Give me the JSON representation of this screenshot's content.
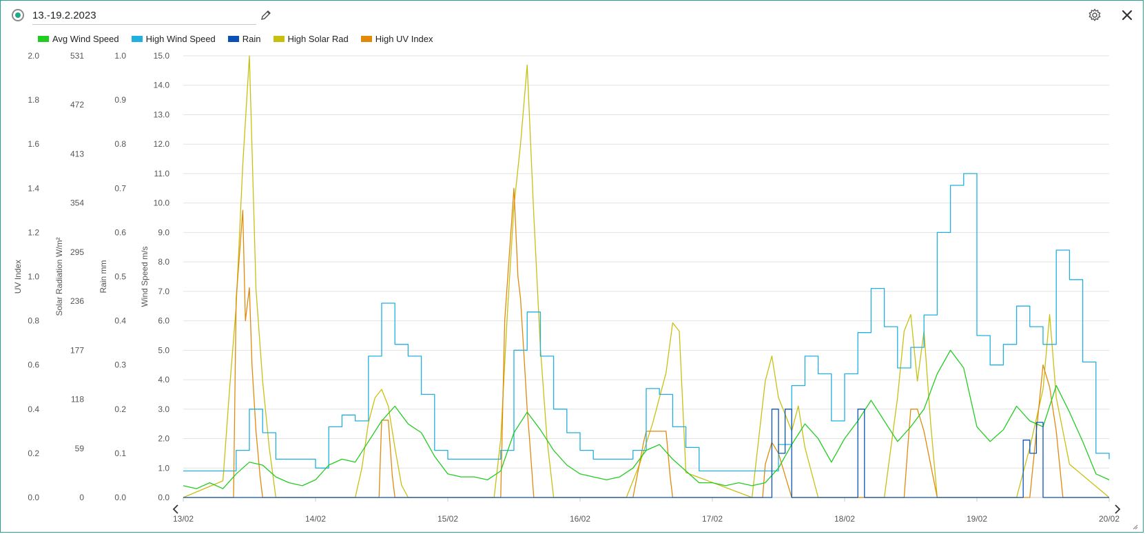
{
  "header": {
    "title": "13.-19.2.2023"
  },
  "colors": {
    "avg_wind": "#22cc22",
    "high_wind": "#1fb0e0",
    "rain": "#0a52b5",
    "solar": "#c8c010",
    "uv": "#e08a0a",
    "grid": "#e2e2e2"
  },
  "chart_data": {
    "type": "line",
    "legend": [
      "Avg Wind Speed",
      "High Wind Speed",
      "Rain",
      "High Solar Rad",
      "High UV Index"
    ],
    "legend_placement": "top-left",
    "x_ticks": [
      "13/02",
      "14/02",
      "15/02",
      "16/02",
      "17/02",
      "18/02",
      "19/02",
      "20/02"
    ],
    "xlim": [
      0,
      7
    ],
    "axes": [
      {
        "title": "UV Index",
        "ticks": [
          "2.0",
          "1.8",
          "1.6",
          "1.4",
          "1.2",
          "1.0",
          "0.8",
          "0.6",
          "0.4",
          "0.2",
          "0.0"
        ],
        "ylim": [
          0,
          2
        ]
      },
      {
        "title": "Solar Radiation W/m²",
        "ticks": [
          "531",
          "472",
          "413",
          "354",
          "295",
          "236",
          "177",
          "118",
          "59",
          "0"
        ],
        "ylim": [
          0,
          531
        ]
      },
      {
        "title": "Rain mm",
        "ticks": [
          "1.0",
          "0.9",
          "0.8",
          "0.7",
          "0.6",
          "0.5",
          "0.4",
          "0.3",
          "0.2",
          "0.1",
          "0.0"
        ],
        "ylim": [
          0,
          1
        ]
      },
      {
        "title": "Wind Speed m/s",
        "ticks": [
          "15.0",
          "14.0",
          "13.0",
          "12.0",
          "11.0",
          "10.0",
          "9.0",
          "8.0",
          "7.0",
          "6.0",
          "5.0",
          "4.0",
          "3.0",
          "2.0",
          "1.0",
          "0.0"
        ],
        "ylim": [
          0,
          15
        ]
      }
    ],
    "grid": true,
    "series": [
      {
        "name": "Avg Wind Speed",
        "axis": 3,
        "x": [
          0,
          0.1,
          0.2,
          0.3,
          0.4,
          0.5,
          0.6,
          0.7,
          0.8,
          0.9,
          1.0,
          1.1,
          1.2,
          1.3,
          1.4,
          1.5,
          1.6,
          1.7,
          1.8,
          1.9,
          2.0,
          2.1,
          2.2,
          2.3,
          2.4,
          2.5,
          2.6,
          2.7,
          2.8,
          2.9,
          3.0,
          3.1,
          3.2,
          3.3,
          3.4,
          3.5,
          3.6,
          3.7,
          3.8,
          3.9,
          4.0,
          4.1,
          4.2,
          4.3,
          4.4,
          4.5,
          4.6,
          4.7,
          4.8,
          4.9,
          5.0,
          5.1,
          5.2,
          5.3,
          5.4,
          5.5,
          5.6,
          5.7,
          5.8,
          5.9,
          6.0,
          6.1,
          6.2,
          6.3,
          6.4,
          6.5,
          6.6,
          6.7,
          6.8,
          6.9,
          7.0
        ],
        "y": [
          0.4,
          0.3,
          0.5,
          0.3,
          0.8,
          1.2,
          1.1,
          0.7,
          0.5,
          0.4,
          0.6,
          1.1,
          1.3,
          1.2,
          1.9,
          2.6,
          3.1,
          2.5,
          2.2,
          1.4,
          0.8,
          0.7,
          0.7,
          0.6,
          0.9,
          2.2,
          2.9,
          2.3,
          1.6,
          1.1,
          0.8,
          0.7,
          0.6,
          0.7,
          1.0,
          1.6,
          1.8,
          1.3,
          0.9,
          0.5,
          0.5,
          0.4,
          0.5,
          0.4,
          0.5,
          1.0,
          1.8,
          2.5,
          2.0,
          1.2,
          2.0,
          2.6,
          3.3,
          2.6,
          1.9,
          2.4,
          3.0,
          4.2,
          5.0,
          4.4,
          2.4,
          1.9,
          2.3,
          3.1,
          2.6,
          2.4,
          3.8,
          2.9,
          1.9,
          0.8,
          0.6
        ]
      },
      {
        "name": "High Wind Speed",
        "axis": 3,
        "x": [
          0,
          0.1,
          0.2,
          0.3,
          0.4,
          0.5,
          0.6,
          0.7,
          0.8,
          0.9,
          1.0,
          1.1,
          1.2,
          1.3,
          1.4,
          1.5,
          1.6,
          1.7,
          1.8,
          1.9,
          2.0,
          2.1,
          2.2,
          2.3,
          2.4,
          2.5,
          2.6,
          2.7,
          2.8,
          2.9,
          3.0,
          3.1,
          3.2,
          3.3,
          3.4,
          3.5,
          3.6,
          3.7,
          3.8,
          3.9,
          4.0,
          4.1,
          4.2,
          4.3,
          4.4,
          4.5,
          4.6,
          4.7,
          4.8,
          4.9,
          5.0,
          5.1,
          5.2,
          5.3,
          5.4,
          5.5,
          5.6,
          5.7,
          5.8,
          5.9,
          6.0,
          6.1,
          6.2,
          6.3,
          6.4,
          6.5,
          6.6,
          6.7,
          6.8,
          6.9,
          7.0
        ],
        "y": [
          0.9,
          0.9,
          0.9,
          0.9,
          1.6,
          3.0,
          2.2,
          1.3,
          1.3,
          1.3,
          1.0,
          2.4,
          2.8,
          2.6,
          4.8,
          6.6,
          5.2,
          4.8,
          3.5,
          1.6,
          1.3,
          1.3,
          1.3,
          1.3,
          1.6,
          5.0,
          6.3,
          4.8,
          3.0,
          2.2,
          1.6,
          1.3,
          1.3,
          1.3,
          1.6,
          3.7,
          3.5,
          2.4,
          1.7,
          0.9,
          0.9,
          0.9,
          0.9,
          0.9,
          0.9,
          1.8,
          3.8,
          4.8,
          4.2,
          2.6,
          4.2,
          5.6,
          7.1,
          5.8,
          4.4,
          5.1,
          6.2,
          9.0,
          10.6,
          11.0,
          5.5,
          4.5,
          5.2,
          6.5,
          5.8,
          5.2,
          8.4,
          7.4,
          4.6,
          1.5,
          1.3
        ]
      },
      {
        "name": "Rain",
        "axis": 2,
        "x": [
          0,
          4.4,
          4.45,
          4.5,
          4.55,
          4.6,
          5.05,
          5.1,
          5.15,
          6.3,
          6.35,
          6.4,
          6.45,
          6.5,
          7.0
        ],
        "y": [
          0,
          0,
          0.2,
          0.1,
          0.2,
          0,
          0,
          0.2,
          0,
          0,
          0.13,
          0.1,
          0.17,
          0,
          0
        ]
      },
      {
        "name": "High Solar Rad",
        "axis": 1,
        "x": [
          0,
          0.3,
          0.35,
          0.4,
          0.45,
          0.5,
          0.55,
          0.6,
          0.65,
          0.7,
          1.3,
          1.35,
          1.4,
          1.45,
          1.5,
          1.55,
          1.6,
          1.65,
          1.7,
          2.35,
          2.4,
          2.45,
          2.5,
          2.55,
          2.6,
          2.65,
          2.7,
          2.75,
          2.8,
          3.35,
          3.45,
          3.55,
          3.65,
          3.7,
          3.75,
          3.8,
          4.3,
          4.4,
          4.45,
          4.5,
          4.6,
          4.65,
          4.7,
          4.8,
          5.3,
          5.4,
          5.45,
          5.5,
          5.55,
          5.6,
          5.65,
          5.7,
          6.3,
          6.4,
          6.5,
          6.55,
          6.6,
          6.7,
          7.0
        ],
        "y": [
          0,
          20,
          130,
          230,
          400,
          531,
          250,
          140,
          60,
          0,
          0,
          35,
          90,
          120,
          130,
          110,
          60,
          15,
          0,
          0,
          70,
          220,
          350,
          425,
          520,
          340,
          180,
          70,
          0,
          0,
          40,
          90,
          150,
          210,
          200,
          30,
          0,
          140,
          170,
          120,
          80,
          110,
          60,
          0,
          0,
          120,
          200,
          220,
          140,
          200,
          90,
          0,
          0,
          60,
          130,
          220,
          120,
          40,
          0
        ]
      },
      {
        "name": "High UV Index",
        "axis": 0,
        "x": [
          0,
          0.38,
          0.4,
          0.45,
          0.47,
          0.5,
          0.52,
          0.55,
          0.58,
          0.6,
          1.48,
          1.5,
          1.55,
          1.58,
          1.6,
          2.4,
          2.43,
          2.5,
          2.53,
          2.55,
          2.58,
          2.6,
          2.62,
          2.65,
          3.4,
          3.48,
          3.5,
          3.55,
          3.6,
          3.65,
          3.68,
          3.7,
          4.38,
          4.4,
          4.45,
          4.5,
          4.55,
          4.6,
          5.45,
          5.48,
          5.5,
          5.55,
          5.6,
          5.65,
          5.7,
          6.4,
          6.45,
          6.5,
          6.55,
          6.6,
          6.65,
          7.0
        ],
        "y": [
          0,
          0,
          0.9,
          1.3,
          0.8,
          0.95,
          0.6,
          0.3,
          0.1,
          0,
          0,
          0.35,
          0.35,
          0.1,
          0,
          0,
          0.8,
          1.4,
          1.0,
          0.9,
          0.6,
          0.4,
          0.25,
          0,
          0,
          0.25,
          0.3,
          0.3,
          0.3,
          0.3,
          0.1,
          0,
          0,
          0.15,
          0.25,
          0.2,
          0.1,
          0,
          0,
          0.25,
          0.4,
          0.4,
          0.3,
          0.15,
          0,
          0,
          0.3,
          0.6,
          0.5,
          0.3,
          0,
          0
        ]
      }
    ]
  }
}
